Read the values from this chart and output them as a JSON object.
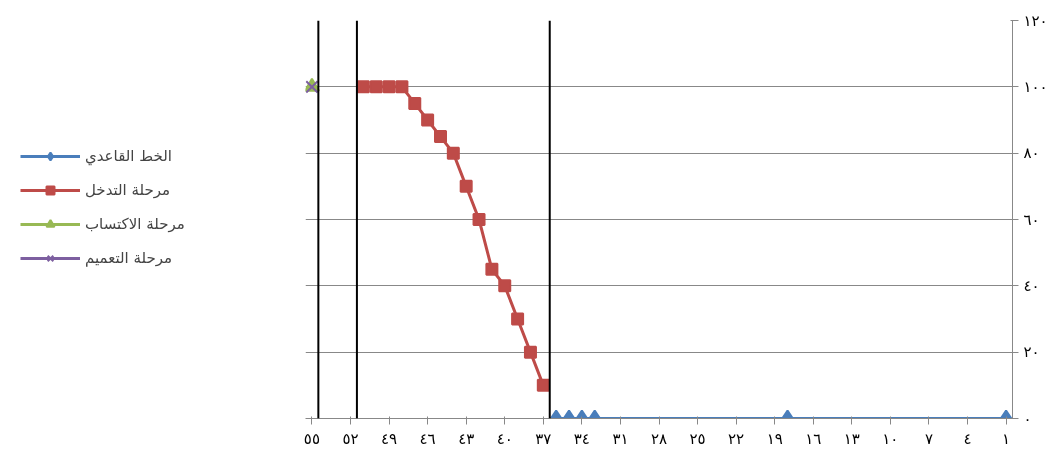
{
  "chart_data": {
    "type": "line",
    "xlim": [
      55.5,
      0.5
    ],
    "xticks": [
      {
        "value": 1,
        "label": "١"
      },
      {
        "value": 4,
        "label": "٤"
      },
      {
        "value": 7,
        "label": "٧"
      },
      {
        "value": 10,
        "label": "١٠"
      },
      {
        "value": 13,
        "label": "١٣"
      },
      {
        "value": 16,
        "label": "١٦"
      },
      {
        "value": 19,
        "label": "١٩"
      },
      {
        "value": 22,
        "label": "٢٢"
      },
      {
        "value": 25,
        "label": "٢٥"
      },
      {
        "value": 28,
        "label": "٢٨"
      },
      {
        "value": 31,
        "label": "٣١"
      },
      {
        "value": 34,
        "label": "٣٤"
      },
      {
        "value": 37,
        "label": "٣٧"
      },
      {
        "value": 40,
        "label": "٤٠"
      },
      {
        "value": 43,
        "label": "٤٣"
      },
      {
        "value": 46,
        "label": "٤٦"
      },
      {
        "value": 49,
        "label": "٤٩"
      },
      {
        "value": 52,
        "label": "٥٢"
      },
      {
        "value": 55,
        "label": "٥٥"
      }
    ],
    "ylim": [
      0,
      120
    ],
    "yticks": [
      {
        "value": 0,
        "label": "٠"
      },
      {
        "value": 20,
        "label": "٢٠"
      },
      {
        "value": 40,
        "label": "٤٠"
      },
      {
        "value": 60,
        "label": "٦٠"
      },
      {
        "value": 80,
        "label": "٨٠"
      },
      {
        "value": 100,
        "label": "١٠٠"
      },
      {
        "value": 120,
        "label": "١٢٠"
      }
    ],
    "grid": "y",
    "legend": "left",
    "series": [
      {
        "name": "الخط القاعدي",
        "color": "#4a7ebb",
        "marker": "diamond",
        "x": [
          1,
          18,
          33,
          34,
          35,
          36
        ],
        "values": [
          0,
          0,
          0,
          0,
          0,
          0
        ]
      },
      {
        "name": "مرحلة التدخل",
        "color": "#be4b48",
        "marker": "square",
        "x": [
          37,
          38,
          39,
          40,
          41,
          42,
          43,
          44,
          45,
          46,
          47,
          48,
          49,
          50,
          51
        ],
        "values": [
          10,
          20,
          30,
          40,
          45,
          60,
          70,
          80,
          85,
          90,
          95,
          100,
          100,
          100,
          100
        ]
      },
      {
        "name": "مرحلة الاكتساب",
        "color": "#98b954",
        "marker": "triangle",
        "x": [
          55
        ],
        "values": [
          100
        ]
      },
      {
        "name": "مرحلة التعميم",
        "color": "#7d5fa0",
        "marker": "cross",
        "x": [
          55
        ],
        "values": [
          100
        ]
      }
    ],
    "ref_lines": [
      {
        "axis": "x",
        "value": 36.5,
        "color": "#000000"
      },
      {
        "axis": "x",
        "value": 51.5,
        "color": "#000000"
      },
      {
        "axis": "x",
        "value": 54.5,
        "color": "#000000"
      }
    ]
  }
}
